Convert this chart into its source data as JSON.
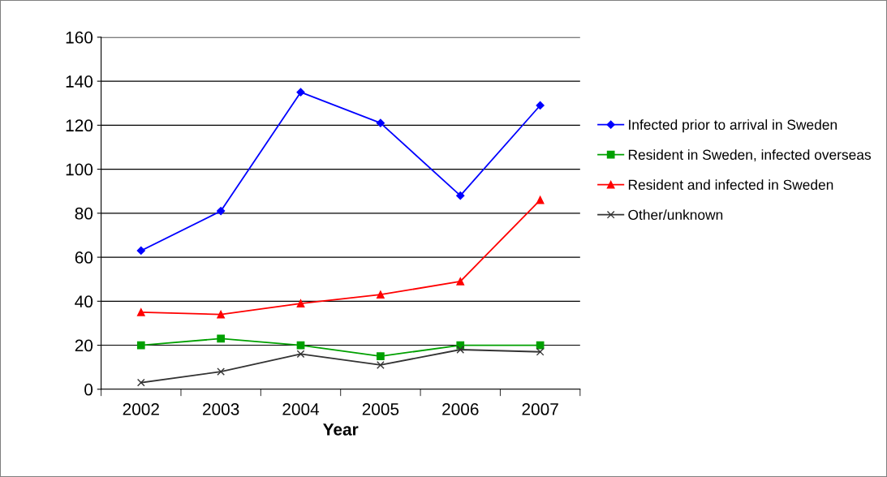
{
  "chart_data": {
    "type": "line",
    "xlabel": "Year",
    "categories": [
      "2002",
      "2003",
      "2004",
      "2005",
      "2006",
      "2007"
    ],
    "series": [
      {
        "name": "Infected prior to arrival in Sweden",
        "color": "#0000ff",
        "marker": "diamond",
        "values": [
          63,
          81,
          135,
          121,
          88,
          129
        ]
      },
      {
        "name": "Resident in Sweden, infected overseas",
        "color": "#00a000",
        "marker": "square",
        "values": [
          20,
          23,
          20,
          15,
          20,
          20
        ]
      },
      {
        "name": "Resident and infected in Sweden",
        "color": "#ff0000",
        "marker": "triangle",
        "values": [
          35,
          34,
          39,
          43,
          49,
          86
        ]
      },
      {
        "name": "Other/unknown",
        "color": "#333333",
        "marker": "cross",
        "values": [
          3,
          8,
          16,
          11,
          18,
          17
        ]
      }
    ],
    "ylim": [
      0,
      160
    ],
    "yticks": [
      0,
      20,
      40,
      60,
      80,
      100,
      120,
      140,
      160
    ],
    "grid": "y",
    "legend": "right",
    "line_style": "solid"
  }
}
